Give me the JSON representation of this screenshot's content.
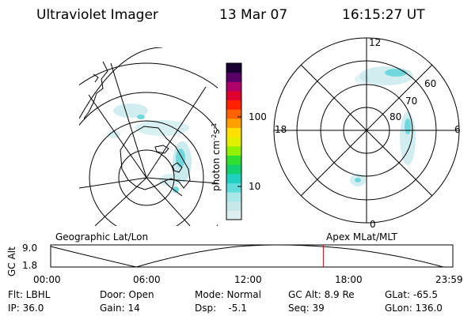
{
  "header": {
    "instrument": "Ultraviolet Imager",
    "date": "13 Mar 07",
    "time": "16:15:27 UT"
  },
  "colorbar": {
    "unit": "photon cm",
    "unit_exp": "-2",
    "unit_mid": "s",
    "unit_exp2": "-1",
    "ticks": [
      {
        "label": "100",
        "value": 100
      },
      {
        "label": "10",
        "value": 10
      }
    ],
    "colors": [
      "#ddeeee",
      "#c8e8e8",
      "#a8e8e8",
      "#60dcdc",
      "#20d0c0",
      "#10d070",
      "#30e030",
      "#90f000",
      "#e0f000",
      "#ffe000",
      "#ffa000",
      "#ff6000",
      "#ff2000",
      "#e00030",
      "#b0006a",
      "#5a0066",
      "#1a0033"
    ]
  },
  "polar_plot": {
    "mlt_labels": {
      "top": "12",
      "left": "18",
      "right": "6",
      "bottom": "0"
    },
    "lat_labels": [
      "60",
      "70",
      "80"
    ]
  },
  "panel_labels": {
    "left": "Geographic Lat/Lon",
    "right": "Apex MLat/MLT"
  },
  "altitude_plot": {
    "axis_label": "GC Alt",
    "y_ticks": [
      "9.0",
      "1.8"
    ],
    "x_ticks": [
      "00:00",
      "06:00",
      "12:00",
      "18:00",
      "23:59"
    ],
    "current_time_hours": 16.258,
    "marker_color": "#cc0000"
  },
  "status": {
    "filter": "Flt: LBHL",
    "ip": "IP: 36.0",
    "door": "Door: Open",
    "gain": "Gain: 14",
    "mode": "Mode: Normal",
    "dsp": "Dsp:    -5.1",
    "gc_alt": "GC Alt: 8.9 Re",
    "seq": "Seq: 39",
    "glat": "GLat: -65.5",
    "glon": "GLon: 136.0"
  }
}
